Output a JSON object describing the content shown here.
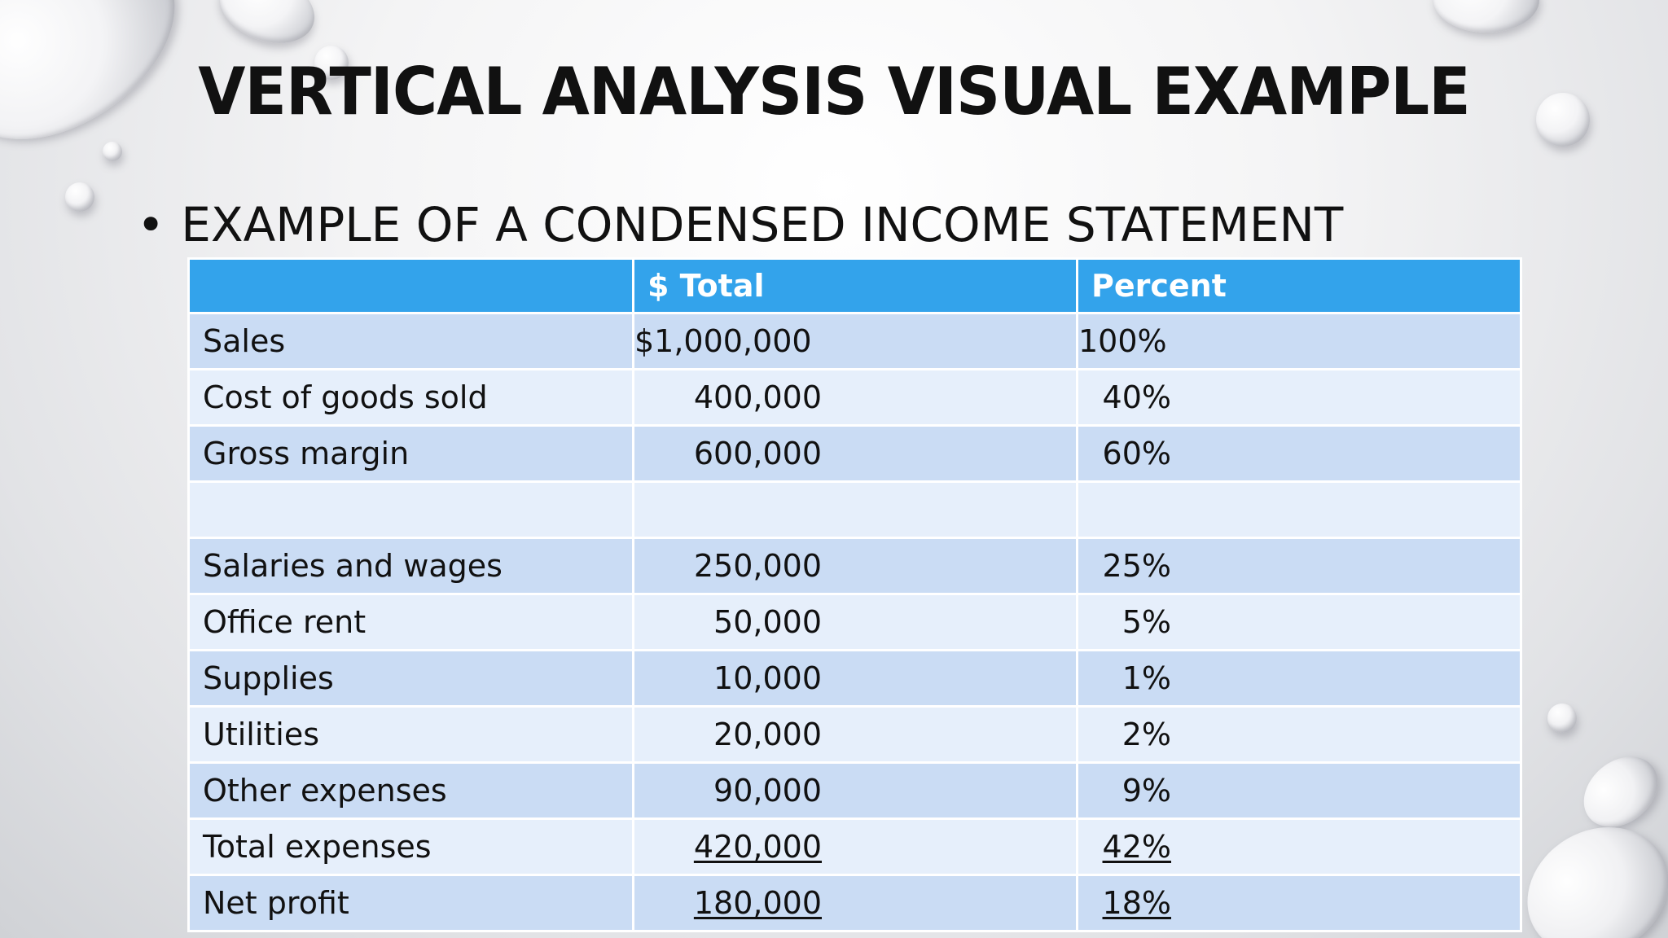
{
  "slide": {
    "title": "VERTICAL ANALYSIS VISUAL EXAMPLE",
    "bullet": "EXAMPLE OF A CONDENSED INCOME STATEMENT"
  },
  "table": {
    "headers": [
      "",
      "$ Total",
      "Percent"
    ],
    "rows": [
      {
        "label": "Sales",
        "total": "$1,000,000",
        "percent": "100%",
        "underline": false
      },
      {
        "label": "Cost of goods sold",
        "total": "400,000",
        "percent": "40%",
        "underline": false
      },
      {
        "label": "Gross margin",
        "total": "600,000",
        "percent": "60%",
        "underline": false
      },
      {
        "label": "",
        "total": "",
        "percent": "",
        "underline": false
      },
      {
        "label": "Salaries and wages",
        "total": "250,000",
        "percent": "25%",
        "underline": false
      },
      {
        "label": "Office rent",
        "total": "50,000",
        "percent": "5%",
        "underline": false
      },
      {
        "label": "Supplies",
        "total": "10,000",
        "percent": "1%",
        "underline": false
      },
      {
        "label": "Utilities",
        "total": "20,000",
        "percent": "2%",
        "underline": false
      },
      {
        "label": "Other expenses",
        "total": "90,000",
        "percent": "9%",
        "underline": false
      },
      {
        "label": "Total expenses",
        "total": "420,000",
        "percent": "42%",
        "underline": true
      },
      {
        "label": "Net profit",
        "total": "180,000",
        "percent": "18%",
        "underline": true
      }
    ]
  },
  "colors": {
    "header_bg": "#33a3eb",
    "row_dark": "#cadcf4",
    "row_light": "#e6effb"
  }
}
